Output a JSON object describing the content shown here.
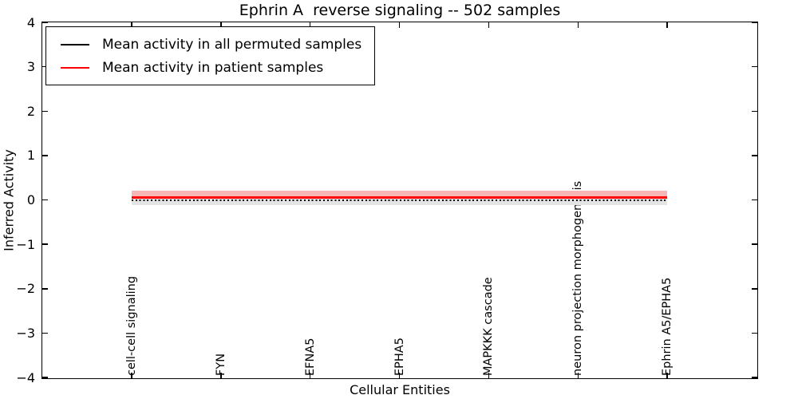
{
  "chart_data": {
    "type": "line",
    "title": "Ephrin A  reverse signaling -- 502 samples",
    "xlabel": "Cellular Entities",
    "ylabel": "Inferred Activity",
    "xlim": [
      0,
      8
    ],
    "ylim": [
      -4,
      4
    ],
    "yticks": [
      4,
      3,
      2,
      1,
      0,
      -1,
      -2,
      -3,
      -4
    ],
    "grid": false,
    "legend_position": "upper left",
    "categories": [
      "cell-cell signaling",
      "FYN",
      "EFNA5",
      "EPHA5",
      "MAPKKK cascade",
      "neuron projection morphogenesis",
      "Ephrin A5/EPHA5"
    ],
    "series": [
      {
        "name": "Mean activity in all permuted samples",
        "color": "#000000",
        "linestyle": "dotted",
        "values": [
          0.0,
          0.0,
          0.0,
          0.0,
          0.0,
          0.0,
          0.0
        ],
        "band_upper": 0.2,
        "band_lower": -0.12,
        "band_color": "#e4e4e4"
      },
      {
        "name": "Mean activity in patient samples",
        "color": "#ff0000",
        "linestyle": "solid",
        "values": [
          0.05,
          0.05,
          0.05,
          0.05,
          0.05,
          0.06,
          0.07
        ],
        "band_upper": 0.15,
        "band_lower": -0.02,
        "band_color": "#f6b6b6"
      }
    ]
  }
}
